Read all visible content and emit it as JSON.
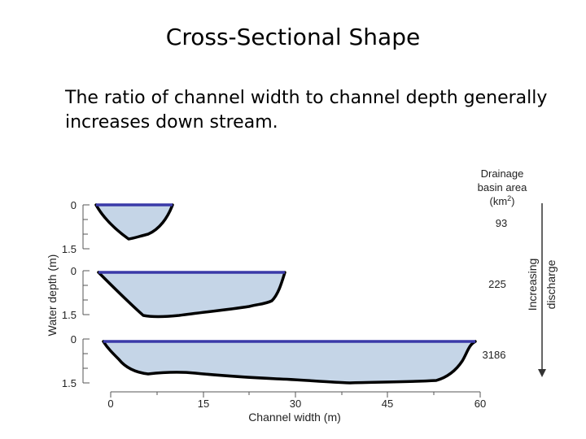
{
  "slide": {
    "title": "Cross-Sectional Shape",
    "body": "The ratio of channel width to channel depth generally increases down stream."
  },
  "diagram": {
    "y_axis_label": "Water depth (m)",
    "x_axis_label": "Channel width (m)",
    "x_ticks": [
      "0",
      "15",
      "30",
      "45",
      "60"
    ],
    "depth_ticks": [
      "0",
      "1.5"
    ],
    "basin_header": [
      "Drainage",
      "basin area",
      "(km",
      "2",
      ")"
    ],
    "arrow_label": [
      "Increasing",
      "discharge"
    ],
    "channels": [
      {
        "basin_area": "93",
        "width_m": 12.5
      },
      {
        "basin_area": "225",
        "width_m": 30
      },
      {
        "basin_area": "3186",
        "width_m": 60
      }
    ],
    "colors": {
      "water_fill": "#c5d5e7",
      "water_surface": "#3a3aa8",
      "channel_bed": "#000000"
    }
  }
}
